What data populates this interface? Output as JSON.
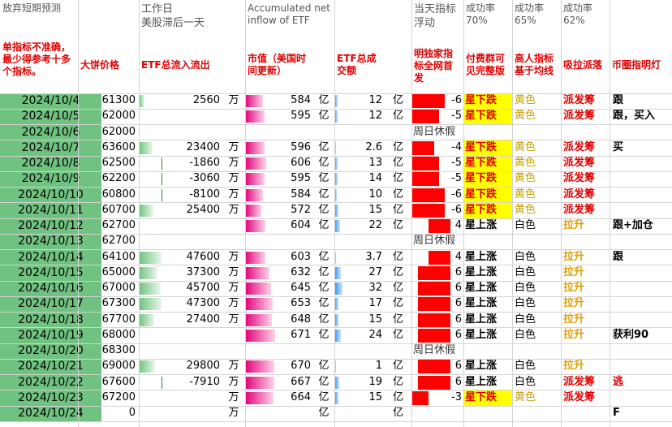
{
  "headers": {
    "col_a": "放弃短期预测",
    "col_c": "工作日\n美股滞后一天",
    "col_f": "Accumulated net inflow of ETF",
    "col_j": "当天指标浮动",
    "col_l": "成功率\n70%",
    "col_m": "成功率\n65%",
    "col_n": "成功率\n62%",
    "sub_a": "单指标不准确，最少得参考十多个指标。",
    "sub_b": "大饼价格",
    "sub_c": "ETF总流入流出",
    "sub_f": "市值（美国时间更新）",
    "sub_h": "ETF总成交额",
    "sub_j": "明独家指标全网首发",
    "sub_l": "付费群可见完整版",
    "sub_m": "高人指标基于均线",
    "sub_n": "吸拉派落",
    "sub_o": "币圈指明灯"
  },
  "units": {
    "wan": "万",
    "yi": "亿"
  },
  "rows": [
    {
      "date": "2024/10/4",
      "price": "61300",
      "flow": "2560",
      "flow_val": 2560,
      "flow_unit": "万",
      "cap": "584",
      "cap_unit": "亿",
      "vol": "12",
      "vol_val": 12,
      "vol_unit": "亿",
      "ind": "-6",
      "ind_val": -6,
      "signal": "星下跌",
      "signal_type": "bear",
      "color": "黄色",
      "color_type": "yellow",
      "action": "派发筹",
      "action_type": "red",
      "note": "跟"
    },
    {
      "date": "2024/10/5",
      "price": "62000",
      "flow": "",
      "flow_val": 0,
      "flow_unit": "",
      "cap": "595",
      "cap_unit": "亿",
      "vol": "12",
      "vol_val": 12,
      "vol_unit": "亿",
      "ind": "-5",
      "ind_val": -5,
      "signal": "星下跌",
      "signal_type": "bear",
      "color": "黄色",
      "color_type": "yellow",
      "action": "派发筹",
      "action_type": "red",
      "note": "跟，买入"
    },
    {
      "date": "2024/10/6",
      "price": "62000",
      "holiday": "周日休假"
    },
    {
      "date": "2024/10/7",
      "price": "63600",
      "flow": "23400",
      "flow_val": 23400,
      "flow_unit": "万",
      "cap": "596",
      "cap_unit": "亿",
      "vol": "2.6",
      "vol_val": 2.6,
      "vol_unit": "亿",
      "ind": "-4",
      "ind_val": -4,
      "signal": "星下跌",
      "signal_type": "bear",
      "color": "黄色",
      "color_type": "yellow",
      "action": "派发筹",
      "action_type": "red",
      "note": "买"
    },
    {
      "date": "2024/10/8",
      "price": "62500",
      "flow": "-1860",
      "flow_val": -1860,
      "flow_unit": "万",
      "cap": "606",
      "cap_unit": "亿",
      "vol": "13",
      "vol_val": 13,
      "vol_unit": "亿",
      "ind": "-5",
      "ind_val": -5,
      "signal": "星下跌",
      "signal_type": "bear",
      "color": "黄色",
      "color_type": "yellow",
      "action": "派发筹",
      "action_type": "red",
      "note": ""
    },
    {
      "date": "2024/10/9",
      "price": "62200",
      "flow": "-3060",
      "flow_val": -3060,
      "flow_unit": "万",
      "cap": "595",
      "cap_unit": "亿",
      "vol": "14",
      "vol_val": 14,
      "vol_unit": "亿",
      "ind": "-5",
      "ind_val": -5,
      "signal": "星下跌",
      "signal_type": "bear",
      "color": "黄色",
      "color_type": "yellow",
      "action": "派发筹",
      "action_type": "red",
      "note": ""
    },
    {
      "date": "2024/10/10",
      "price": "60800",
      "flow": "-8100",
      "flow_val": -8100,
      "flow_unit": "万",
      "cap": "584",
      "cap_unit": "亿",
      "vol": "10",
      "vol_val": 10,
      "vol_unit": "亿",
      "ind": "-6",
      "ind_val": -6,
      "signal": "星下跌",
      "signal_type": "bear",
      "color": "黄色",
      "color_type": "yellow",
      "action": "派发筹",
      "action_type": "red",
      "note": ""
    },
    {
      "date": "2024/10/11",
      "price": "60700",
      "flow": "25400",
      "flow_val": 25400,
      "flow_unit": "万",
      "cap": "572",
      "cap_unit": "亿",
      "vol": "15",
      "vol_val": 15,
      "vol_unit": "亿",
      "ind": "-6",
      "ind_val": -6,
      "signal": "星下跌",
      "signal_type": "bear",
      "color": "黄色",
      "color_type": "yellow",
      "action": "派发筹",
      "action_type": "red",
      "note": ""
    },
    {
      "date": "2024/10/12",
      "price": "62700",
      "flow": "",
      "flow_val": 0,
      "flow_unit": "",
      "cap": "604",
      "cap_unit": "亿",
      "vol": "22",
      "vol_val": 22,
      "vol_unit": "亿",
      "ind": "4",
      "ind_val": 4,
      "signal": "星上涨",
      "signal_type": "up",
      "color": "白色",
      "color_type": "white",
      "action": "拉升",
      "action_type": "yellow",
      "note": "跟+加仓"
    },
    {
      "date": "2024/10/13",
      "price": "62700",
      "holiday": "周日休假"
    },
    {
      "date": "2024/10/14",
      "price": "64100",
      "flow": "47600",
      "flow_val": 47600,
      "flow_unit": "万",
      "cap": "603",
      "cap_unit": "亿",
      "vol": "3.7",
      "vol_val": 3.7,
      "vol_unit": "亿",
      "ind": "4",
      "ind_val": 4,
      "signal": "星上涨",
      "signal_type": "up",
      "color": "白色",
      "color_type": "white",
      "action": "拉升",
      "action_type": "yellow",
      "note": "跟"
    },
    {
      "date": "2024/10/15",
      "price": "65000",
      "flow": "37300",
      "flow_val": 37300,
      "flow_unit": "万",
      "cap": "632",
      "cap_unit": "亿",
      "vol": "27",
      "vol_val": 27,
      "vol_unit": "亿",
      "ind": "6",
      "ind_val": 6,
      "signal": "星上涨",
      "signal_type": "up",
      "color": "白色",
      "color_type": "white",
      "action": "拉升",
      "action_type": "yellow",
      "note": ""
    },
    {
      "date": "2024/10/16",
      "price": "67000",
      "flow": "45700",
      "flow_val": 45700,
      "flow_unit": "万",
      "cap": "645",
      "cap_unit": "亿",
      "vol": "32",
      "vol_val": 32,
      "vol_unit": "亿",
      "ind": "6",
      "ind_val": 6,
      "signal": "星上涨",
      "signal_type": "up",
      "color": "白色",
      "color_type": "white",
      "action": "拉升",
      "action_type": "yellow",
      "note": ""
    },
    {
      "date": "2024/10/17",
      "price": "67300",
      "flow": "47300",
      "flow_val": 47300,
      "flow_unit": "万",
      "cap": "653",
      "cap_unit": "亿",
      "vol": "17",
      "vol_val": 17,
      "vol_unit": "亿",
      "ind": "6",
      "ind_val": 6,
      "signal": "星上涨",
      "signal_type": "up",
      "color": "白色",
      "color_type": "white",
      "action": "拉升",
      "action_type": "yellow",
      "note": ""
    },
    {
      "date": "2024/10/18",
      "price": "67700",
      "flow": "27400",
      "flow_val": 27400,
      "flow_unit": "万",
      "cap": "648",
      "cap_unit": "亿",
      "vol": "15",
      "vol_val": 15,
      "vol_unit": "亿",
      "ind": "6",
      "ind_val": 6,
      "signal": "星上涨",
      "signal_type": "up",
      "color": "白色",
      "color_type": "white",
      "action": "拉升",
      "action_type": "yellow",
      "note": ""
    },
    {
      "date": "2024/10/19",
      "price": "68000",
      "flow": "",
      "flow_val": 0,
      "flow_unit": "",
      "cap": "671",
      "cap_unit": "亿",
      "vol": "24",
      "vol_val": 24,
      "vol_unit": "亿",
      "ind": "6",
      "ind_val": 6,
      "signal": "星上涨",
      "signal_type": "up",
      "color": "白色",
      "color_type": "white",
      "action": "拉升",
      "action_type": "yellow",
      "note": "获利90"
    },
    {
      "date": "2024/10/20",
      "price": "68300",
      "holiday": "周日休假"
    },
    {
      "date": "2024/10/21",
      "price": "69000",
      "flow": "29800",
      "flow_val": 29800,
      "flow_unit": "万",
      "cap": "670",
      "cap_unit": "亿",
      "vol": "1",
      "vol_val": 1,
      "vol_unit": "亿",
      "ind": "6",
      "ind_val": 6,
      "signal": "星上涨",
      "signal_type": "up",
      "color": "白色",
      "color_type": "white",
      "action": "拉升",
      "action_type": "yellow",
      "note": ""
    },
    {
      "date": "2024/10/22",
      "price": "67600",
      "flow": "-7910",
      "flow_val": -7910,
      "flow_unit": "万",
      "cap": "667",
      "cap_unit": "亿",
      "vol": "19",
      "vol_val": 19,
      "vol_unit": "亿",
      "ind": "6",
      "ind_val": 6,
      "signal": "星上涨",
      "signal_type": "up",
      "color": "白色",
      "color_type": "white",
      "action": "派发筹",
      "action_type": "red",
      "note": "逃",
      "note_red": true
    },
    {
      "date": "2024/10/23",
      "price": "67200",
      "flow": "",
      "flow_val": 0,
      "flow_unit": "万",
      "cap": "664",
      "cap_unit": "亿",
      "vol": "15",
      "vol_val": 15,
      "vol_unit": "亿",
      "ind": "-3",
      "ind_val": -3,
      "signal": "星下跌",
      "signal_type": "bear",
      "color": "黄色",
      "color_type": "yellow",
      "action": "派发筹",
      "action_type": "red",
      "note": ""
    },
    {
      "date": "2024/10/24",
      "price": "0",
      "flow": "",
      "flow_val": 0,
      "flow_unit": "万",
      "cap": "",
      "cap_unit": "亿",
      "vol": "",
      "vol_val": 0,
      "vol_unit": "亿",
      "ind": "",
      "ind_val": 0,
      "signal": "",
      "signal_type": "none",
      "color": "",
      "color_type": "none",
      "action": "",
      "action_type": "none",
      "note": "F"
    }
  ]
}
